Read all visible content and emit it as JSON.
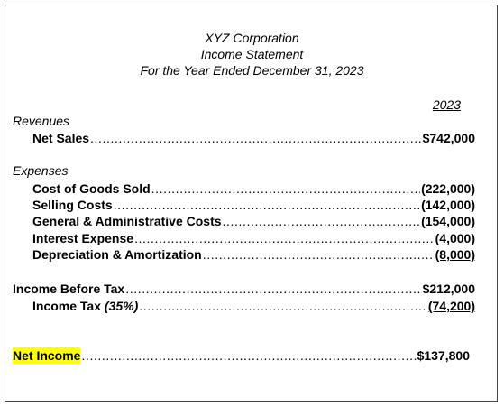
{
  "header": {
    "company": "XYZ Corporation",
    "statement": "Income Statement",
    "period": "For the Year Ended December 31, 2023"
  },
  "column_header": "2023",
  "rows": [
    {
      "label": "Revenues",
      "style": "heading"
    },
    {
      "label": "Net Sales",
      "value": "$742,000",
      "style": "item"
    },
    {
      "label": "Expenses",
      "style": "heading"
    },
    {
      "label": "Cost of Goods Sold",
      "value": "(222,000)",
      "style": "item"
    },
    {
      "label": "Selling Costs",
      "value": "(142,000)",
      "style": "item"
    },
    {
      "label": "General & Administrative Costs",
      "value": "(154,000)",
      "style": "item"
    },
    {
      "label": "Interest Expense",
      "value": "(4,000)",
      "style": "item"
    },
    {
      "label": "Depreciation & Amortization",
      "value": "(8,000)",
      "style": "item",
      "underline": true
    },
    {
      "label": "Income Before Tax",
      "value": "$212,000",
      "style": "total"
    },
    {
      "label": "Income Tax",
      "note": "(35%)",
      "value": "(74,200)",
      "style": "item",
      "underline": true
    },
    {
      "label": "Net Income",
      "value": "$137,800",
      "style": "total",
      "highlight": true
    }
  ]
}
